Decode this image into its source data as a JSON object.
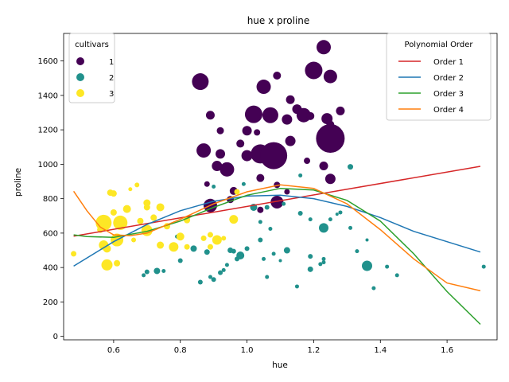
{
  "chart_data": {
    "type": "scatter",
    "title": "hue x proline",
    "xlabel": "hue",
    "ylabel": "proline",
    "xlim": [
      0.45,
      1.75
    ],
    "ylim": [
      -20,
      1760
    ],
    "xticks": [
      0.6,
      0.8,
      1.0,
      1.2,
      1.4,
      1.6
    ],
    "xtick_labels": [
      "0.6",
      "0.8",
      "1.0",
      "1.2",
      "1.4",
      "1.6"
    ],
    "yticks": [
      0,
      200,
      400,
      600,
      800,
      1000,
      1200,
      1400,
      1600
    ],
    "ytick_labels": [
      "0",
      "200",
      "400",
      "600",
      "800",
      "1000",
      "1200",
      "1400",
      "1600"
    ],
    "grid": false,
    "colors": {
      "1": "#440154",
      "2": "#21918c",
      "3": "#fde725"
    },
    "cultivar_legend": {
      "title": "cultivars",
      "placement": "upper left",
      "entries": [
        {
          "label": "1",
          "class": "1"
        },
        {
          "label": "2",
          "class": "2"
        },
        {
          "label": "3",
          "class": "3"
        }
      ]
    },
    "points": [
      {
        "x": 0.86,
        "y": 1480,
        "c": "1",
        "s": 10.5
      },
      {
        "x": 0.87,
        "y": 1080,
        "c": "1",
        "s": 9
      },
      {
        "x": 0.89,
        "y": 1285,
        "c": "1",
        "s": 5.5
      },
      {
        "x": 0.92,
        "y": 1195,
        "c": "1",
        "s": 4.5
      },
      {
        "x": 0.92,
        "y": 1060,
        "c": "1",
        "s": 6
      },
      {
        "x": 0.91,
        "y": 990,
        "c": "1",
        "s": 6.5
      },
      {
        "x": 0.94,
        "y": 970,
        "c": "1",
        "s": 9
      },
      {
        "x": 0.98,
        "y": 1120,
        "c": "1",
        "s": 5
      },
      {
        "x": 0.89,
        "y": 760,
        "c": "1",
        "s": 8.5
      },
      {
        "x": 0.96,
        "y": 845,
        "c": "1",
        "s": 5
      },
      {
        "x": 0.95,
        "y": 795,
        "c": "1",
        "s": 4.5
      },
      {
        "x": 0.88,
        "y": 885,
        "c": "1",
        "s": 3.5
      },
      {
        "x": 0.82,
        "y": 680,
        "c": "1",
        "s": 3.5
      },
      {
        "x": 1.0,
        "y": 1195,
        "c": "1",
        "s": 6
      },
      {
        "x": 1.02,
        "y": 1290,
        "c": "1",
        "s": 11
      },
      {
        "x": 1.05,
        "y": 1450,
        "c": "1",
        "s": 9
      },
      {
        "x": 1.07,
        "y": 1285,
        "c": "1",
        "s": 10
      },
      {
        "x": 1.04,
        "y": 1060,
        "c": "1",
        "s": 12
      },
      {
        "x": 1.08,
        "y": 1050,
        "c": "1",
        "s": 17
      },
      {
        "x": 1.0,
        "y": 1050,
        "c": "1",
        "s": 7
      },
      {
        "x": 1.03,
        "y": 1185,
        "c": "1",
        "s": 4
      },
      {
        "x": 1.09,
        "y": 1515,
        "c": "1",
        "s": 5
      },
      {
        "x": 1.04,
        "y": 920,
        "c": "1",
        "s": 5
      },
      {
        "x": 1.09,
        "y": 780,
        "c": "1",
        "s": 8
      },
      {
        "x": 1.09,
        "y": 880,
        "c": "1",
        "s": 4
      },
      {
        "x": 1.04,
        "y": 735,
        "c": "1",
        "s": 4
      },
      {
        "x": 1.12,
        "y": 1260,
        "c": "1",
        "s": 6.5
      },
      {
        "x": 1.13,
        "y": 1375,
        "c": "1",
        "s": 5.5
      },
      {
        "x": 1.15,
        "y": 1320,
        "c": "1",
        "s": 6
      },
      {
        "x": 1.17,
        "y": 1285,
        "c": "1",
        "s": 9
      },
      {
        "x": 1.2,
        "y": 1545,
        "c": "1",
        "s": 11
      },
      {
        "x": 1.19,
        "y": 1280,
        "c": "1",
        "s": 5
      },
      {
        "x": 1.13,
        "y": 1135,
        "c": "1",
        "s": 6.5
      },
      {
        "x": 1.18,
        "y": 1020,
        "c": "1",
        "s": 4
      },
      {
        "x": 1.12,
        "y": 840,
        "c": "1",
        "s": 3.5
      },
      {
        "x": 1.23,
        "y": 1680,
        "c": "1",
        "s": 9
      },
      {
        "x": 1.25,
        "y": 1510,
        "c": "1",
        "s": 8.5
      },
      {
        "x": 1.24,
        "y": 1265,
        "c": "1",
        "s": 7
      },
      {
        "x": 1.25,
        "y": 1230,
        "c": "1",
        "s": 5
      },
      {
        "x": 1.25,
        "y": 1150,
        "c": "1",
        "s": 18
      },
      {
        "x": 1.28,
        "y": 1310,
        "c": "1",
        "s": 5.5
      },
      {
        "x": 1.23,
        "y": 990,
        "c": "1",
        "s": 5.5
      },
      {
        "x": 1.25,
        "y": 915,
        "c": "1",
        "s": 6.5
      },
      {
        "x": 0.69,
        "y": 355,
        "c": "2",
        "s": 2.5
      },
      {
        "x": 0.7,
        "y": 375,
        "c": "2",
        "s": 3
      },
      {
        "x": 0.73,
        "y": 380,
        "c": "2",
        "s": 4
      },
      {
        "x": 0.75,
        "y": 380,
        "c": "2",
        "s": 2.5
      },
      {
        "x": 0.79,
        "y": 580,
        "c": "2",
        "s": 2.5
      },
      {
        "x": 0.8,
        "y": 440,
        "c": "2",
        "s": 3
      },
      {
        "x": 0.82,
        "y": 520,
        "c": "2",
        "s": 3
      },
      {
        "x": 0.84,
        "y": 510,
        "c": "2",
        "s": 4
      },
      {
        "x": 0.86,
        "y": 315,
        "c": "2",
        "s": 3
      },
      {
        "x": 0.88,
        "y": 490,
        "c": "2",
        "s": 3.5
      },
      {
        "x": 0.89,
        "y": 345,
        "c": "2",
        "s": 2.5
      },
      {
        "x": 0.9,
        "y": 330,
        "c": "2",
        "s": 3
      },
      {
        "x": 0.9,
        "y": 870,
        "c": "2",
        "s": 2.5
      },
      {
        "x": 0.92,
        "y": 370,
        "c": "2",
        "s": 3
      },
      {
        "x": 0.93,
        "y": 385,
        "c": "2",
        "s": 2.5
      },
      {
        "x": 0.94,
        "y": 415,
        "c": "2",
        "s": 2.5
      },
      {
        "x": 0.95,
        "y": 500,
        "c": "2",
        "s": 3.5
      },
      {
        "x": 0.96,
        "y": 495,
        "c": "2",
        "s": 3
      },
      {
        "x": 0.97,
        "y": 450,
        "c": "2",
        "s": 3
      },
      {
        "x": 0.98,
        "y": 470,
        "c": "2",
        "s": 5
      },
      {
        "x": 0.99,
        "y": 885,
        "c": "2",
        "s": 2.5
      },
      {
        "x": 1.0,
        "y": 510,
        "c": "2",
        "s": 3
      },
      {
        "x": 1.02,
        "y": 750,
        "c": "2",
        "s": 4.5
      },
      {
        "x": 1.04,
        "y": 665,
        "c": "2",
        "s": 2.5
      },
      {
        "x": 1.04,
        "y": 560,
        "c": "2",
        "s": 3
      },
      {
        "x": 1.05,
        "y": 450,
        "c": "2",
        "s": 2.5
      },
      {
        "x": 1.06,
        "y": 750,
        "c": "2",
        "s": 3
      },
      {
        "x": 1.06,
        "y": 345,
        "c": "2",
        "s": 2.5
      },
      {
        "x": 1.07,
        "y": 625,
        "c": "2",
        "s": 2.5
      },
      {
        "x": 1.08,
        "y": 480,
        "c": "2",
        "s": 2.5
      },
      {
        "x": 1.1,
        "y": 440,
        "c": "2",
        "s": 2
      },
      {
        "x": 1.11,
        "y": 770,
        "c": "2",
        "s": 2.5
      },
      {
        "x": 1.12,
        "y": 500,
        "c": "2",
        "s": 4
      },
      {
        "x": 1.15,
        "y": 290,
        "c": "2",
        "s": 2.5
      },
      {
        "x": 1.16,
        "y": 715,
        "c": "2",
        "s": 3
      },
      {
        "x": 1.16,
        "y": 935,
        "c": "2",
        "s": 2.5
      },
      {
        "x": 1.19,
        "y": 680,
        "c": "2",
        "s": 2.5
      },
      {
        "x": 1.19,
        "y": 465,
        "c": "2",
        "s": 3
      },
      {
        "x": 1.19,
        "y": 390,
        "c": "2",
        "s": 3.5
      },
      {
        "x": 1.22,
        "y": 420,
        "c": "2",
        "s": 2.5
      },
      {
        "x": 1.23,
        "y": 450,
        "c": "2",
        "s": 2.5
      },
      {
        "x": 1.23,
        "y": 630,
        "c": "2",
        "s": 6
      },
      {
        "x": 1.23,
        "y": 430,
        "c": "2",
        "s": 2.5
      },
      {
        "x": 1.25,
        "y": 680,
        "c": "2",
        "s": 2.5
      },
      {
        "x": 1.27,
        "y": 710,
        "c": "2",
        "s": 2
      },
      {
        "x": 1.28,
        "y": 720,
        "c": "2",
        "s": 2.5
      },
      {
        "x": 1.31,
        "y": 985,
        "c": "2",
        "s": 3.5
      },
      {
        "x": 1.31,
        "y": 630,
        "c": "2",
        "s": 2.5
      },
      {
        "x": 1.33,
        "y": 495,
        "c": "2",
        "s": 2.5
      },
      {
        "x": 1.36,
        "y": 410,
        "c": "2",
        "s": 6.5
      },
      {
        "x": 1.36,
        "y": 560,
        "c": "2",
        "s": 2
      },
      {
        "x": 1.38,
        "y": 280,
        "c": "2",
        "s": 2.5
      },
      {
        "x": 1.42,
        "y": 405,
        "c": "2",
        "s": 2.5
      },
      {
        "x": 1.45,
        "y": 355,
        "c": "2",
        "s": 2.5
      },
      {
        "x": 1.71,
        "y": 405,
        "c": "2",
        "s": 2.5
      },
      {
        "x": 0.48,
        "y": 480,
        "c": "3",
        "s": 3.5
      },
      {
        "x": 0.56,
        "y": 620,
        "c": "3",
        "s": 4
      },
      {
        "x": 0.57,
        "y": 660,
        "c": "3",
        "s": 10
      },
      {
        "x": 0.57,
        "y": 530,
        "c": "3",
        "s": 6
      },
      {
        "x": 0.58,
        "y": 415,
        "c": "3",
        "s": 7
      },
      {
        "x": 0.58,
        "y": 510,
        "c": "3",
        "s": 5
      },
      {
        "x": 0.59,
        "y": 835,
        "c": "3",
        "s": 4
      },
      {
        "x": 0.6,
        "y": 830,
        "c": "3",
        "s": 4
      },
      {
        "x": 0.6,
        "y": 720,
        "c": "3",
        "s": 4
      },
      {
        "x": 0.61,
        "y": 425,
        "c": "3",
        "s": 4
      },
      {
        "x": 0.61,
        "y": 560,
        "c": "3",
        "s": 8
      },
      {
        "x": 0.62,
        "y": 660,
        "c": "3",
        "s": 9
      },
      {
        "x": 0.64,
        "y": 740,
        "c": "3",
        "s": 5
      },
      {
        "x": 0.65,
        "y": 855,
        "c": "3",
        "s": 2.5
      },
      {
        "x": 0.66,
        "y": 560,
        "c": "3",
        "s": 3
      },
      {
        "x": 0.67,
        "y": 880,
        "c": "3",
        "s": 3
      },
      {
        "x": 0.68,
        "y": 670,
        "c": "3",
        "s": 4
      },
      {
        "x": 0.7,
        "y": 775,
        "c": "3",
        "s": 4.5
      },
      {
        "x": 0.7,
        "y": 750,
        "c": "3",
        "s": 4
      },
      {
        "x": 0.7,
        "y": 615,
        "c": "3",
        "s": 7
      },
      {
        "x": 0.72,
        "y": 690,
        "c": "3",
        "s": 4
      },
      {
        "x": 0.74,
        "y": 750,
        "c": "3",
        "s": 5
      },
      {
        "x": 0.74,
        "y": 530,
        "c": "3",
        "s": 4.5
      },
      {
        "x": 0.76,
        "y": 640,
        "c": "3",
        "s": 4
      },
      {
        "x": 0.78,
        "y": 520,
        "c": "3",
        "s": 6
      },
      {
        "x": 0.8,
        "y": 580,
        "c": "3",
        "s": 5
      },
      {
        "x": 0.82,
        "y": 675,
        "c": "3",
        "s": 4
      },
      {
        "x": 0.82,
        "y": 520,
        "c": "3",
        "s": 3.5
      },
      {
        "x": 0.87,
        "y": 570,
        "c": "3",
        "s": 3.5
      },
      {
        "x": 0.89,
        "y": 590,
        "c": "3",
        "s": 3.5
      },
      {
        "x": 0.89,
        "y": 520,
        "c": "3",
        "s": 3.5
      },
      {
        "x": 0.91,
        "y": 560,
        "c": "3",
        "s": 6
      },
      {
        "x": 0.93,
        "y": 570,
        "c": "3",
        "s": 3
      },
      {
        "x": 0.96,
        "y": 680,
        "c": "3",
        "s": 5.5
      },
      {
        "x": 0.97,
        "y": 840,
        "c": "3",
        "s": 3.5
      }
    ],
    "fits_legend": {
      "title": "Polynomial Order",
      "placement": "upper right"
    },
    "series": [
      {
        "name": "Order 1",
        "color": "#d62728",
        "x": [
          0.48,
          1.7
        ],
        "y": [
          582,
          988
        ]
      },
      {
        "name": "Order 2",
        "color": "#1f77b4",
        "x": [
          0.48,
          0.6,
          0.7,
          0.8,
          0.9,
          1.0,
          1.1,
          1.2,
          1.3,
          1.4,
          1.5,
          1.6,
          1.7
        ],
        "y": [
          408,
          550,
          650,
          730,
          785,
          815,
          820,
          800,
          755,
          690,
          610,
          550,
          490
        ]
      },
      {
        "name": "Order 3",
        "color": "#2ca02c",
        "x": [
          0.48,
          0.52,
          0.6,
          0.7,
          0.8,
          0.9,
          1.0,
          1.1,
          1.2,
          1.3,
          1.4,
          1.5,
          1.6,
          1.7
        ],
        "y": [
          590,
          580,
          575,
          610,
          670,
          750,
          820,
          860,
          850,
          790,
          670,
          480,
          260,
          70
        ]
      },
      {
        "name": "Order 4",
        "color": "#ff7f0e",
        "x": [
          0.48,
          0.52,
          0.56,
          0.6,
          0.65,
          0.7,
          0.8,
          0.9,
          1.0,
          1.1,
          1.2,
          1.3,
          1.4,
          1.5,
          1.6,
          1.7
        ],
        "y": [
          843,
          730,
          635,
          590,
          585,
          600,
          680,
          770,
          840,
          880,
          860,
          770,
          620,
          450,
          310,
          265
        ]
      }
    ]
  }
}
